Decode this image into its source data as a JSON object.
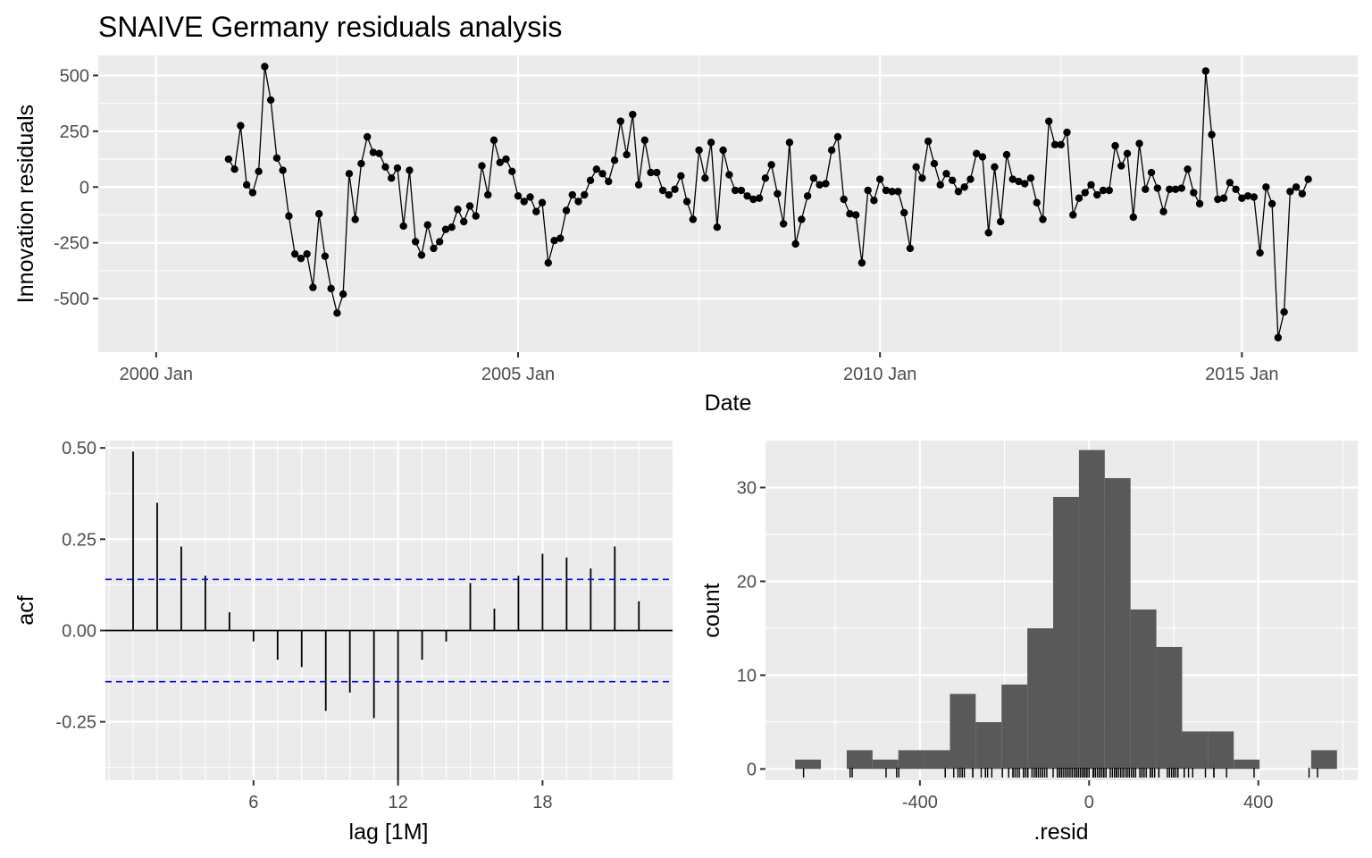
{
  "title": "SNAIVE Germany residuals analysis",
  "colors": {
    "panel": "#ebebeb",
    "grid": "#ffffff",
    "ink": "#000000",
    "bar": "#595959",
    "ci": "#0000ff"
  },
  "chart_data": [
    {
      "type": "line",
      "title": "SNAIVE Germany residuals analysis",
      "xlabel": "Date",
      "ylabel": "Innovation residuals",
      "x_ticks": [
        "2000 Jan",
        "2005 Jan",
        "2010 Jan",
        "2015 Jan"
      ],
      "y_ticks": [
        "-500",
        "-250",
        "0",
        "250",
        "500"
      ],
      "y_tick_values": [
        -500,
        -250,
        0,
        250,
        500
      ],
      "x_tick_values": [
        2000.0,
        2005.0,
        2010.0,
        2015.0
      ],
      "xlim": [
        1999.2,
        2016.6
      ],
      "ylim": [
        -740,
        590
      ],
      "markers": true,
      "x_start": "2001 Jan",
      "frequency": "monthly",
      "values": [
        125,
        80,
        275,
        10,
        -25,
        70,
        540,
        390,
        130,
        75,
        -130,
        -300,
        -320,
        -300,
        -450,
        -120,
        -310,
        -455,
        -565,
        -480,
        60,
        -145,
        105,
        225,
        155,
        150,
        90,
        40,
        85,
        -175,
        75,
        -245,
        -305,
        -170,
        -275,
        -245,
        -190,
        -180,
        -100,
        -155,
        -85,
        -130,
        95,
        -35,
        210,
        110,
        125,
        70,
        -40,
        -65,
        -45,
        -110,
        -70,
        -340,
        -240,
        -230,
        -105,
        -35,
        -65,
        -35,
        30,
        80,
        60,
        25,
        120,
        295,
        145,
        325,
        10,
        210,
        65,
        65,
        -15,
        -35,
        -10,
        50,
        -65,
        -145,
        165,
        40,
        200,
        -180,
        165,
        55,
        -15,
        -15,
        -40,
        -55,
        -50,
        40,
        100,
        -30,
        -165,
        200,
        -255,
        -145,
        -40,
        40,
        10,
        15,
        165,
        225,
        -55,
        -120,
        -125,
        -340,
        -15,
        -60,
        35,
        -15,
        -20,
        -20,
        -115,
        -275,
        90,
        40,
        205,
        105,
        10,
        60,
        30,
        -20,
        0,
        35,
        150,
        135,
        -205,
        90,
        -155,
        145,
        35,
        25,
        15,
        40,
        -70,
        -145,
        295,
        190,
        190,
        245,
        -125,
        -50,
        -25,
        10,
        -35,
        -15,
        -15,
        185,
        95,
        150,
        -135,
        195,
        -10,
        65,
        -5,
        -110,
        -10,
        -10,
        -5,
        80,
        -25,
        -75,
        520,
        235,
        -55,
        -50,
        20,
        -10,
        -50,
        -40,
        -45,
        -295,
        0,
        -75,
        -675,
        -560,
        -20,
        0,
        -30,
        35
      ]
    },
    {
      "type": "bar",
      "xlabel": "lag [1M]",
      "ylabel": "acf",
      "x_ticks": [
        "6",
        "12",
        "18"
      ],
      "x_tick_values": [
        6,
        12,
        18
      ],
      "y_ticks": [
        "-0.25",
        "0.00",
        "0.25",
        "0.50"
      ],
      "y_tick_values": [
        -0.25,
        0,
        0.25,
        0.5
      ],
      "xlim": [
        -0.15,
        23.4
      ],
      "ylim": [
        -0.41,
        0.52
      ],
      "lags": [
        1,
        2,
        3,
        4,
        5,
        6,
        7,
        8,
        9,
        10,
        11,
        12,
        13,
        14,
        15,
        16,
        17,
        18,
        19,
        20,
        21,
        22
      ],
      "values": [
        0.49,
        0.35,
        0.23,
        0.15,
        0.05,
        -0.03,
        -0.08,
        -0.1,
        -0.22,
        -0.17,
        -0.24,
        -0.41,
        -0.08,
        -0.03,
        0.13,
        0.06,
        0.15,
        0.21,
        0.2,
        0.17,
        0.23,
        0.08
      ],
      "confidence_band": [
        -0.14,
        0.14
      ]
    },
    {
      "type": "bar",
      "xlabel": ".resid",
      "ylabel": "count",
      "x_ticks": [
        "-400",
        "0",
        "400"
      ],
      "x_tick_values": [
        -400,
        0,
        400
      ],
      "y_ticks": [
        "0",
        "10",
        "20",
        "30"
      ],
      "y_tick_values": [
        0,
        10,
        20,
        30
      ],
      "xlim": [
        -765,
        635
      ],
      "ylim": [
        -1.2,
        35
      ],
      "bin_width": 61,
      "bin_lefts": [
        -695,
        -634,
        -573,
        -512,
        -451,
        -390,
        -329,
        -268,
        -207,
        -146,
        -85,
        -24,
        37,
        98,
        159,
        220,
        281,
        342,
        403,
        464,
        525
      ],
      "counts": [
        1,
        0,
        2,
        1,
        2,
        2,
        8,
        5,
        9,
        15,
        29,
        34,
        31,
        17,
        13,
        4,
        4,
        1,
        0,
        0,
        2
      ],
      "rug": [
        -675,
        -560,
        -565,
        -480,
        -455,
        -450,
        -340,
        -340,
        -320,
        -310,
        -305,
        -300,
        -300,
        -295,
        -275,
        -275,
        -255,
        -245,
        -245,
        -240,
        -230,
        -205,
        -190,
        -180,
        -180,
        -175,
        -170,
        -165,
        -155,
        -155,
        -150,
        -145,
        -145,
        -145,
        -135,
        -130,
        -130,
        -125,
        -125,
        -120,
        -120,
        -115,
        -110,
        -110,
        -105,
        -100,
        -85,
        -75,
        -75,
        -70,
        -70,
        -65,
        -65,
        -65,
        -60,
        -55,
        -55,
        -55,
        -50,
        -50,
        -50,
        -45,
        -40,
        -40,
        -40,
        -40,
        -35,
        -35,
        -35,
        -35,
        -30,
        -30,
        -25,
        -25,
        -25,
        -20,
        -20,
        -20,
        -15,
        -15,
        -15,
        -15,
        -15,
        -15,
        -10,
        -10,
        -10,
        -10,
        -10,
        -5,
        -5,
        0,
        0,
        0,
        10,
        10,
        10,
        10,
        15,
        15,
        20,
        25,
        25,
        30,
        30,
        35,
        35,
        35,
        40,
        40,
        40,
        40,
        40,
        50,
        55,
        60,
        60,
        60,
        65,
        65,
        65,
        70,
        75,
        75,
        80,
        80,
        85,
        90,
        90,
        95,
        95,
        100,
        105,
        105,
        110,
        120,
        125,
        125,
        130,
        135,
        145,
        145,
        150,
        150,
        150,
        155,
        165,
        165,
        185,
        190,
        190,
        195,
        200,
        200,
        205,
        210,
        210,
        225,
        225,
        235,
        245,
        275,
        295,
        295,
        325,
        390,
        520,
        540
      ]
    }
  ]
}
